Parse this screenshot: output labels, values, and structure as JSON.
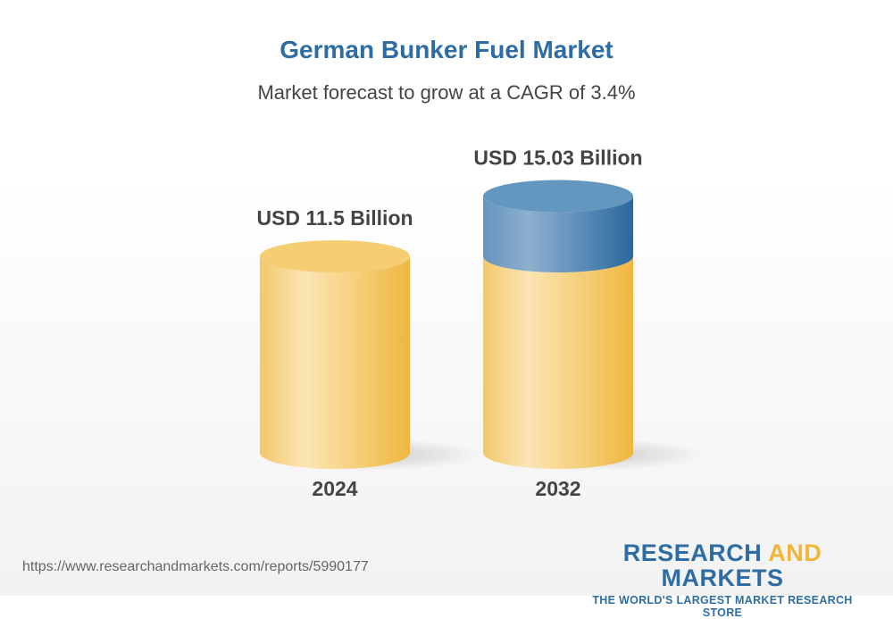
{
  "header": {
    "title": "German Bunker Fuel Market",
    "subtitle": "Market forecast to grow at a CAGR of 3.4%"
  },
  "chart_data": {
    "type": "bar",
    "style": "3d-cylinder",
    "categories": [
      "2024",
      "2032"
    ],
    "values": [
      11.5,
      15.03
    ],
    "data_labels": [
      "USD 11.5 Billion",
      "USD 15.03 Billion"
    ],
    "unit": "USD Billion",
    "colors": {
      "base": "#f2c050",
      "growth": "#2e6da4"
    }
  },
  "footer": {
    "url": "https://www.researchandmarkets.com/reports/5990177",
    "logo_part1": "RESEARCH ",
    "logo_part2": "AND",
    "logo_part3": " MARKETS",
    "logo_tagline": "THE WORLD'S LARGEST MARKET RESEARCH STORE"
  }
}
